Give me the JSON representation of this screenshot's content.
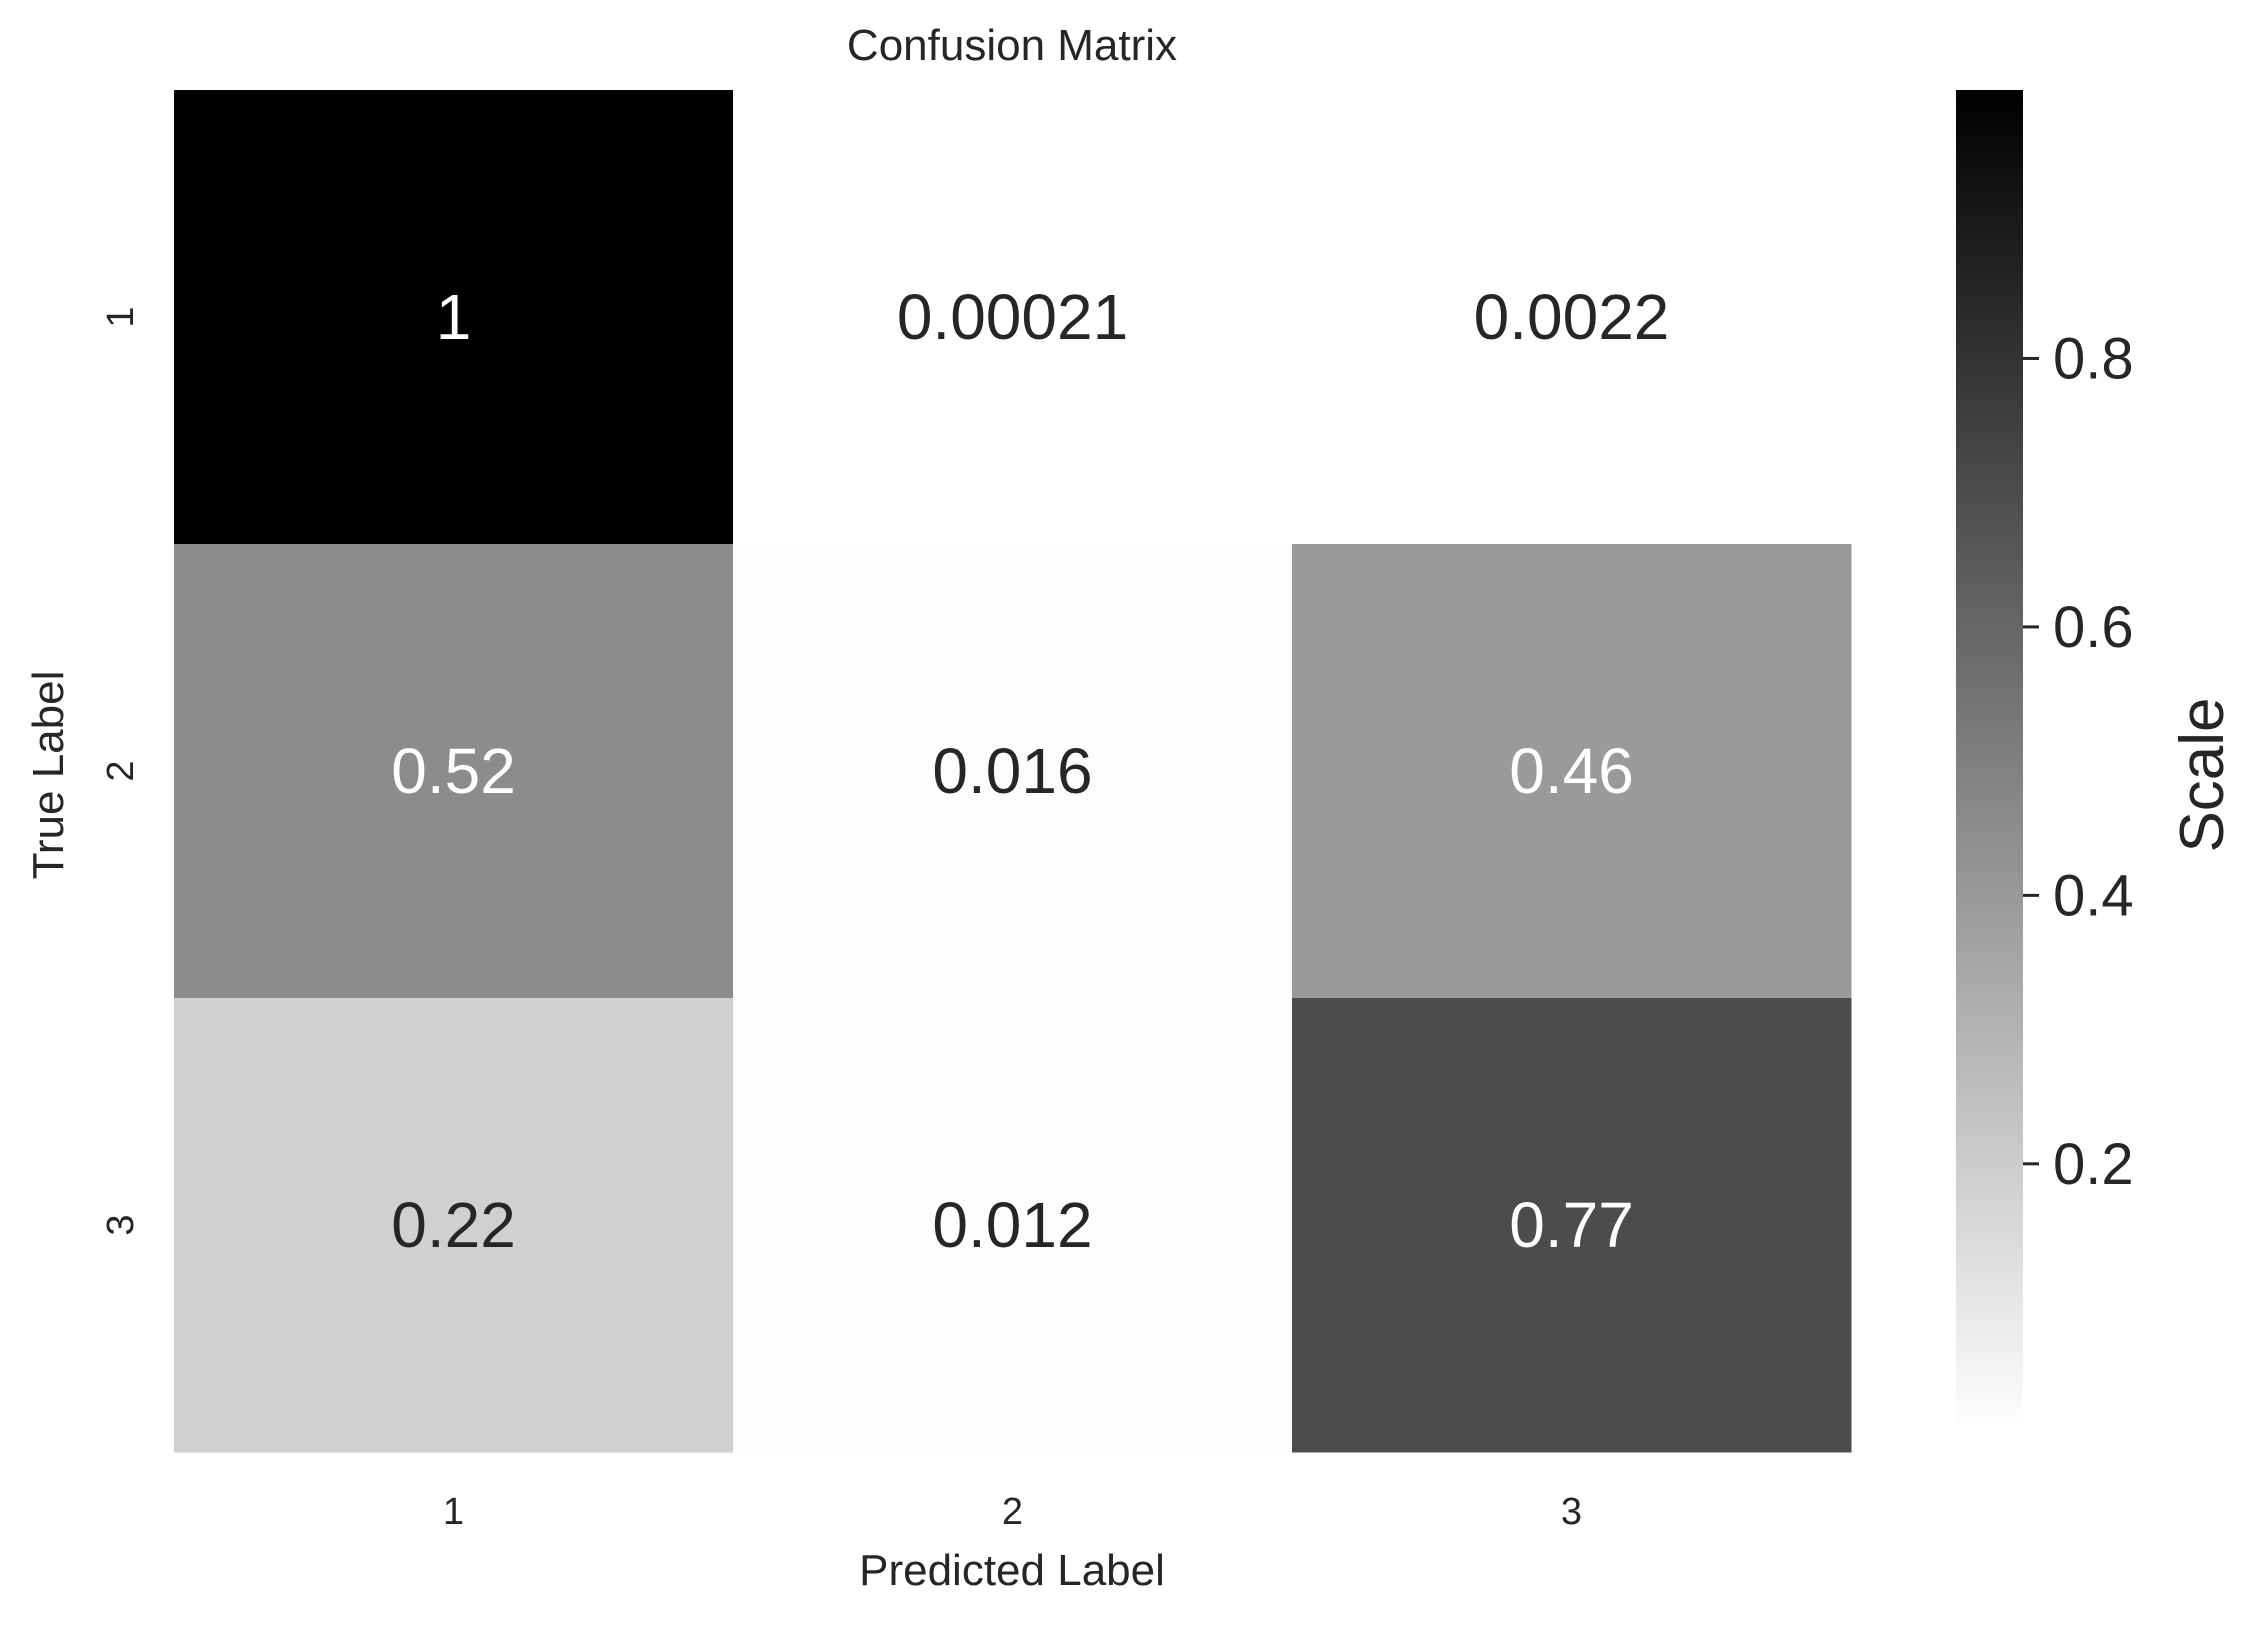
{
  "chart_data": {
    "type": "heatmap",
    "title": "Confusion Matrix",
    "xlabel": "Predicted Label",
    "ylabel": "True Label",
    "x_categories": [
      "1",
      "2",
      "3"
    ],
    "y_categories": [
      "1",
      "2",
      "3"
    ],
    "values": [
      [
        1,
        0.00021,
        0.0022
      ],
      [
        0.52,
        0.016,
        0.46
      ],
      [
        0.22,
        0.012,
        0.77
      ]
    ],
    "cell_labels": [
      [
        "1",
        "0.00021",
        "0.0022"
      ],
      [
        "0.52",
        "0.016",
        "0.46"
      ],
      [
        "0.22",
        "0.012",
        "0.77"
      ]
    ],
    "colormap": "greys",
    "colorbar": {
      "label": "Scale",
      "vmin": 0.00021,
      "vmax": 1,
      "ticks": [
        0.2,
        0.4,
        0.6,
        0.8
      ],
      "tick_labels": [
        "0.2",
        "0.4",
        "0.6",
        "0.8"
      ]
    },
    "colors": {
      "low": "#ffffff",
      "high": "#000000",
      "dark_text": "#262626",
      "light_text": "#ffffff"
    }
  }
}
